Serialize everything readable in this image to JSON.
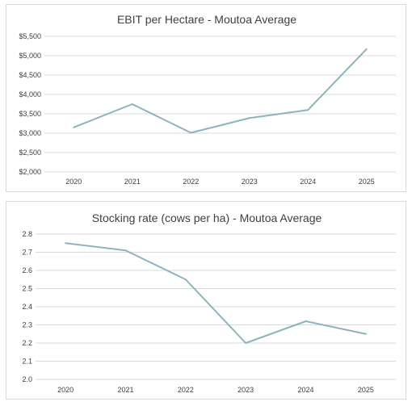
{
  "chart_data": [
    {
      "type": "line",
      "title": "EBIT per Hectare - Moutoa Average",
      "xlabel": "",
      "ylabel": "",
      "x": [
        "2020",
        "2021",
        "2022",
        "2023",
        "2024",
        "2025"
      ],
      "series": [
        {
          "values": [
            3150,
            3750,
            3010,
            3390,
            3600,
            5170
          ]
        }
      ],
      "ylim": [
        2000,
        5500
      ],
      "ytick_step": 500,
      "ytick_labels": [
        "$2,000",
        "$2,500",
        "$3,000",
        "$3,500",
        "$4,000",
        "$4,500",
        "$5,000",
        "$5,500"
      ],
      "grid": true,
      "legend": "none",
      "line_color": "#8db3bf"
    },
    {
      "type": "line",
      "title": "Stocking rate (cows per ha) - Moutoa Average",
      "xlabel": "",
      "ylabel": "",
      "x": [
        "2020",
        "2021",
        "2022",
        "2023",
        "2024",
        "2025"
      ],
      "series": [
        {
          "values": [
            2.75,
            2.71,
            2.55,
            2.2,
            2.32,
            2.25
          ]
        }
      ],
      "ylim": [
        2.0,
        2.8
      ],
      "ytick_step": 0.1,
      "ytick_labels": [
        "2.0",
        "2.1",
        "2.2",
        "2.3",
        "2.4",
        "2.5",
        "2.6",
        "2.7",
        "2.8"
      ],
      "grid": true,
      "legend": "none",
      "line_color": "#8db3bf"
    }
  ]
}
